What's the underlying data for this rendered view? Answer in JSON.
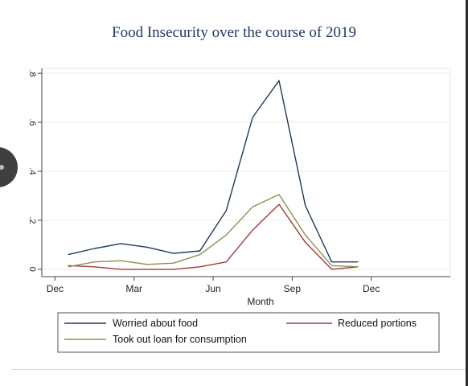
{
  "slide": {
    "title": "Food Insecurity over the course of 2019"
  },
  "chart_data": {
    "type": "line",
    "xlabel": "Month",
    "ylabel": "",
    "xticks": [
      {
        "x": 0,
        "label": "Dec"
      },
      {
        "x": 3,
        "label": "Mar"
      },
      {
        "x": 6,
        "label": "Jun"
      },
      {
        "x": 9,
        "label": "Sep"
      },
      {
        "x": 12,
        "label": "Dec"
      }
    ],
    "yticks": [
      {
        "y": 0,
        "label": "0"
      },
      {
        "y": 0.2,
        "label": ".2"
      },
      {
        "y": 0.4,
        "label": ".4"
      },
      {
        "y": 0.6,
        "label": ".6"
      },
      {
        "y": 0.8,
        "label": ".8"
      }
    ],
    "xlim": [
      -0.5,
      15
    ],
    "ylim": [
      -0.03,
      0.82
    ],
    "grid": true,
    "legend_position": "bottom",
    "series": [
      {
        "name": "Worried about food",
        "color": "#1f3b5a",
        "x": [
          0.5,
          1.5,
          2.5,
          3.5,
          4.5,
          5.5,
          6.5,
          7.5,
          8.5,
          9.5,
          10.5,
          11.5
        ],
        "y": [
          0.06,
          0.085,
          0.105,
          0.09,
          0.065,
          0.075,
          0.24,
          0.62,
          0.77,
          0.26,
          0.03,
          0.03
        ]
      },
      {
        "name": "Reduced portions",
        "color": "#a43838",
        "x": [
          0.5,
          1.5,
          2.5,
          3.5,
          4.5,
          5.5,
          6.5,
          7.5,
          8.5,
          9.5,
          10.5,
          11.5
        ],
        "y": [
          0.015,
          0.01,
          0.0,
          0.0,
          0.0,
          0.01,
          0.03,
          0.16,
          0.265,
          0.11,
          0.0,
          0.01
        ]
      },
      {
        "name": "Took out loan for consumption",
        "color": "#8e8f50",
        "x": [
          0.5,
          1.5,
          2.5,
          3.5,
          4.5,
          5.5,
          6.5,
          7.5,
          8.5,
          9.5,
          10.5,
          11.5
        ],
        "y": [
          0.01,
          0.03,
          0.035,
          0.02,
          0.025,
          0.06,
          0.14,
          0.255,
          0.305,
          0.14,
          0.015,
          0.01
        ]
      }
    ]
  }
}
